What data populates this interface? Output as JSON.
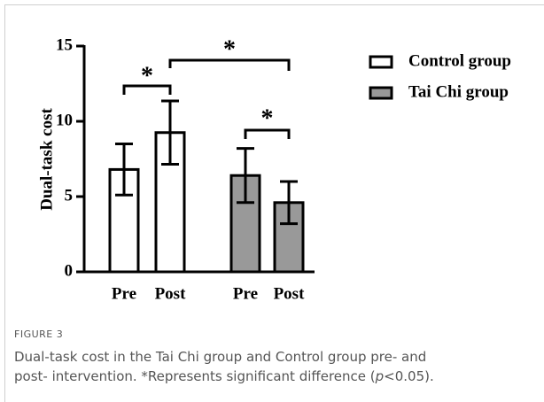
{
  "chart_data": {
    "type": "bar",
    "y_label": "Dual-task cost",
    "categories": [
      "Pre",
      "Post",
      "Pre",
      "Post"
    ],
    "series": [
      {
        "name": "Control group",
        "color": "#ffffff",
        "values": [
          6.8,
          9.25,
          null,
          null
        ],
        "errors": [
          1.7,
          2.1,
          null,
          null
        ]
      },
      {
        "name": "Tai Chi group",
        "color": "#999999",
        "values": [
          null,
          null,
          6.4,
          4.6
        ],
        "errors": [
          null,
          null,
          1.8,
          1.4
        ]
      }
    ],
    "ylim": [
      0,
      15
    ],
    "yticks": [
      0,
      5,
      10,
      15
    ],
    "annotations": [
      "*",
      "*",
      "*"
    ],
    "legend": "top-right"
  },
  "caption": {
    "figure_label": "FIGURE 3",
    "line1": "Dual-task cost in the Tai Chi group and Control group pre- and",
    "line2": [
      "post- intervention. *Represents significant difference (",
      "p",
      "<0.05)."
    ]
  }
}
